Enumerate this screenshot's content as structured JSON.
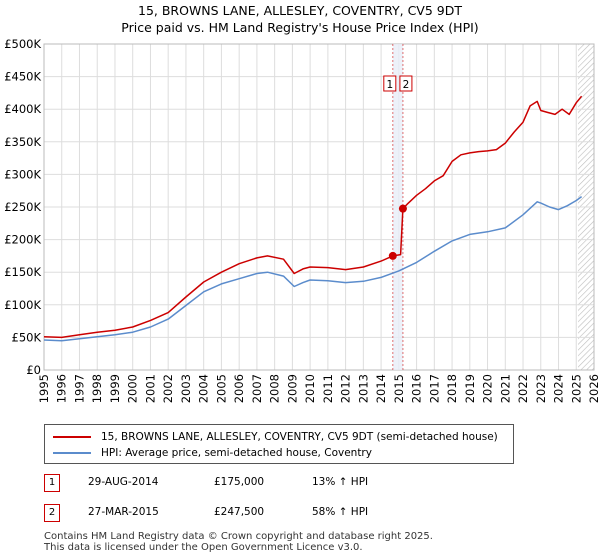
{
  "title_line1": "15, BROWNS LANE, ALLESLEY, COVENTRY, CV5 9DT",
  "title_line2": "Price paid vs. HM Land Registry's House Price Index (HPI)",
  "colors": {
    "property": "#cc0000",
    "hpi": "#5b8ccc",
    "grid": "#dddddd",
    "marker": "#cc0000"
  },
  "chart_data": {
    "type": "line",
    "title": "Price paid vs. HM Land Registry's House Price Index (HPI)",
    "xlabel": "",
    "ylabel": "",
    "xlim": [
      1995,
      2026
    ],
    "ylim": [
      0,
      500000
    ],
    "grid": true,
    "x_ticks": [
      1995,
      1996,
      1997,
      1998,
      1999,
      2000,
      2001,
      2002,
      2003,
      2004,
      2005,
      2006,
      2007,
      2008,
      2009,
      2010,
      2011,
      2012,
      2013,
      2014,
      2015,
      2016,
      2017,
      2018,
      2019,
      2020,
      2021,
      2022,
      2023,
      2024,
      2025,
      2026
    ],
    "y_ticks": [
      {
        "value": 0,
        "label": "£0"
      },
      {
        "value": 50000,
        "label": "£50K"
      },
      {
        "value": 100000,
        "label": "£100K"
      },
      {
        "value": 150000,
        "label": "£150K"
      },
      {
        "value": 200000,
        "label": "£200K"
      },
      {
        "value": 250000,
        "label": "£250K"
      },
      {
        "value": 300000,
        "label": "£300K"
      },
      {
        "value": 350000,
        "label": "£350K"
      },
      {
        "value": 400000,
        "label": "£400K"
      },
      {
        "value": 450000,
        "label": "£450K"
      },
      {
        "value": 500000,
        "label": "£500K"
      }
    ],
    "series": [
      {
        "name": "15, BROWNS LANE, ALLESLEY, COVENTRY, CV5 9DT (semi-detached house)",
        "color": "#cc0000",
        "x": [
          1995,
          1996,
          1997,
          1998,
          1999,
          2000,
          2001,
          2002,
          2003,
          2004,
          2005,
          2006,
          2007,
          2007.6,
          2008.5,
          2009.1,
          2009.6,
          2010,
          2011,
          2012,
          2013,
          2014,
          2014.66,
          2015.1,
          2015.23,
          2015.5,
          2016,
          2016.5,
          2017,
          2017.5,
          2018,
          2018.5,
          2019,
          2019.5,
          2020,
          2020.5,
          2021,
          2021.5,
          2022,
          2022.4,
          2022.8,
          2023,
          2023.4,
          2023.8,
          2024.2,
          2024.6,
          2025,
          2025.3
        ],
        "y": [
          51000,
          50000,
          54000,
          58000,
          61000,
          66000,
          76000,
          88000,
          112000,
          135000,
          150000,
          163000,
          172000,
          175000,
          170000,
          148000,
          155000,
          158000,
          157000,
          154000,
          158000,
          167000,
          175000,
          177000,
          247500,
          255000,
          268000,
          278000,
          290000,
          298000,
          320000,
          330000,
          333000,
          335000,
          336000,
          338000,
          348000,
          365000,
          380000,
          405000,
          412000,
          398000,
          395000,
          392000,
          400000,
          392000,
          410000,
          420000
        ]
      },
      {
        "name": "HPI: Average price, semi-detached house, Coventry",
        "color": "#5b8ccc",
        "x": [
          1995,
          1996,
          1997,
          1998,
          1999,
          2000,
          2001,
          2002,
          2003,
          2004,
          2005,
          2006,
          2007,
          2007.6,
          2008.5,
          2009.1,
          2009.6,
          2010,
          2011,
          2012,
          2013,
          2014,
          2015,
          2016,
          2017,
          2018,
          2019,
          2020,
          2021,
          2022,
          2022.8,
          2023,
          2023.5,
          2024,
          2024.5,
          2025,
          2025.3
        ],
        "y": [
          46000,
          45000,
          48000,
          51000,
          54000,
          58000,
          66000,
          78000,
          99000,
          120000,
          132000,
          140000,
          148000,
          150000,
          144000,
          128000,
          134000,
          138000,
          137000,
          134000,
          136000,
          142000,
          152000,
          165000,
          182000,
          198000,
          208000,
          212000,
          218000,
          238000,
          258000,
          256000,
          250000,
          246000,
          252000,
          260000,
          266000
        ]
      }
    ],
    "sales": [
      {
        "marker": "1",
        "x": 2014.66,
        "price": 175000,
        "date": "29-AUG-2014",
        "price_label": "£175,000",
        "hpi": "13% ↑ HPI"
      },
      {
        "marker": "2",
        "x": 2015.23,
        "price": 247500,
        "date": "27-MAR-2015",
        "price_label": "£247,500",
        "hpi": "58% ↑ HPI"
      }
    ],
    "hatch_from": 2025.1
  },
  "footer_line1": "Contains HM Land Registry data © Crown copyright and database right 2025.",
  "footer_line2": "This data is licensed under the Open Government Licence v3.0."
}
